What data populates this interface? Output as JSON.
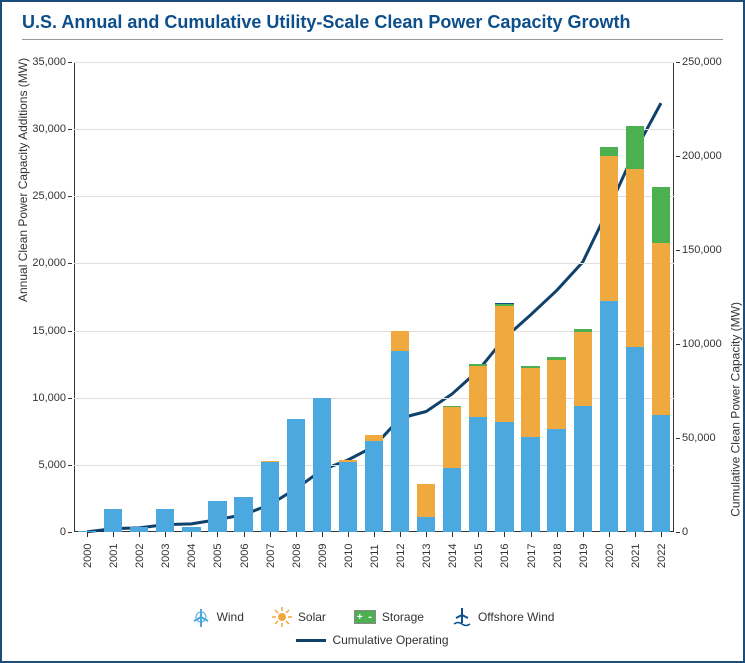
{
  "title": "U.S. Annual and Cumulative Utility-Scale Clean Power Capacity Growth",
  "chart": {
    "type": "stacked-bar-with-line",
    "background_color": "#ffffff",
    "frame_border_color": "#1a4d7a",
    "title_color": "#0d4f8b",
    "title_fontsize": 18,
    "grid_color": "#e0e0e0",
    "axis_color": "#333333",
    "tick_fontsize": 11,
    "label_fontsize": 12,
    "years": [
      "2000",
      "2001",
      "2002",
      "2003",
      "2004",
      "2005",
      "2006",
      "2007",
      "2008",
      "2009",
      "2010",
      "2011",
      "2012",
      "2013",
      "2014",
      "2015",
      "2016",
      "2017",
      "2018",
      "2019",
      "2020",
      "2021",
      "2022"
    ],
    "y_left": {
      "label": "Annual Clean Power Capacity Additions (MW)",
      "min": 0,
      "max": 35000,
      "step": 5000
    },
    "y_right": {
      "label": "Cumulative Clean Power Capacity (MW)",
      "min": 0,
      "max": 250000,
      "step": 50000
    },
    "series": {
      "wind": {
        "label": "Wind",
        "color": "#4ba9e0",
        "values": [
          100,
          1700,
          400,
          1700,
          400,
          2300,
          2600,
          5200,
          8400,
          10000,
          5200,
          6800,
          13500,
          1100,
          4800,
          8600,
          8200,
          7100,
          7700,
          9400,
          17200,
          13800,
          8700
        ]
      },
      "solar": {
        "label": "Solar",
        "color": "#f0a93e",
        "values": [
          0,
          0,
          0,
          0,
          0,
          0,
          0,
          100,
          0,
          0,
          200,
          400,
          1500,
          2500,
          4500,
          3800,
          8600,
          5100,
          5100,
          5500,
          10800,
          13200,
          12800
        ]
      },
      "storage": {
        "label": "Storage",
        "color": "#4caf50",
        "values": [
          0,
          0,
          0,
          0,
          0,
          0,
          0,
          0,
          0,
          0,
          0,
          0,
          0,
          0,
          100,
          100,
          200,
          200,
          200,
          200,
          700,
          3200,
          4200
        ]
      },
      "offshore_wind": {
        "label": "Offshore Wind",
        "color": "#0d4f8b",
        "values": [
          0,
          0,
          0,
          0,
          0,
          0,
          0,
          0,
          0,
          0,
          0,
          0,
          0,
          0,
          0,
          0,
          30,
          0,
          0,
          0,
          0,
          0,
          0
        ]
      }
    },
    "series_order": [
      "wind",
      "solar",
      "storage",
      "offshore_wind"
    ],
    "cumulative": {
      "label": "Cumulative Operating",
      "color": "#10416b",
      "line_width": 3,
      "values": [
        100,
        1800,
        2200,
        3900,
        4300,
        6600,
        9200,
        14500,
        22900,
        32900,
        38300,
        45500,
        60500,
        64100,
        73500,
        86000,
        103030,
        115430,
        128430,
        143530,
        172230,
        202430,
        228130
      ]
    },
    "bar_width_ratio": 0.7
  },
  "legend": {
    "wind": "Wind",
    "solar": "Solar",
    "storage": "Storage",
    "offshore_wind": "Offshore Wind",
    "cumulative": "Cumulative Operating"
  }
}
